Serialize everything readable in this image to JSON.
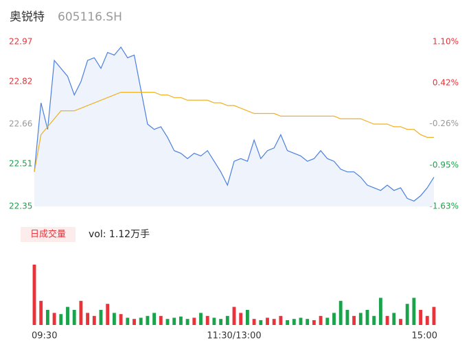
{
  "chart_data": {
    "type": "intraday",
    "title": "奥锐特",
    "subtitle": "605116.SH",
    "volume_label": "日成交量",
    "volume_text": "vol: 1.12万手",
    "price_color": "#4a7fe0",
    "avg_color": "#f0b020",
    "area_color": "#eef3fc",
    "up_color": "#e8333a",
    "down_color": "#1aa34a",
    "ylim": [
      22.35,
      22.97
    ],
    "yticks": [
      22.97,
      22.82,
      22.66,
      22.51,
      22.35
    ],
    "y2lim": [
      -1.63,
      1.1
    ],
    "y2ticks": [
      {
        "value": 1.1,
        "label": "1.10%"
      },
      {
        "value": 0.42,
        "label": "0.42%"
      },
      {
        "value": -0.26,
        "label": "-0.26%"
      },
      {
        "value": -0.95,
        "label": "-0.95%"
      },
      {
        "value": -1.63,
        "label": "-1.63%"
      }
    ],
    "tick_colors": [
      "#e8333a",
      "#e8333a",
      "#999999",
      "#1aa34a",
      "#1aa34a"
    ],
    "xlim": [
      0,
      60
    ],
    "xticks": [
      {
        "value": 0,
        "label": "09:30"
      },
      {
        "value": 30,
        "label": "11:30/13:00"
      },
      {
        "value": 60,
        "label": "15:00"
      }
    ],
    "vol_ylim": [
      0,
      100
    ],
    "series": [
      {
        "name": "price",
        "values": [
          22.48,
          22.74,
          22.64,
          22.9,
          22.87,
          22.84,
          22.77,
          22.82,
          22.9,
          22.91,
          22.87,
          22.93,
          22.92,
          22.95,
          22.91,
          22.92,
          22.79,
          22.66,
          22.64,
          22.65,
          22.61,
          22.56,
          22.55,
          22.53,
          22.55,
          22.54,
          22.56,
          22.52,
          22.48,
          22.43,
          22.52,
          22.53,
          22.52,
          22.6,
          22.53,
          22.56,
          22.57,
          22.62,
          22.56,
          22.55,
          22.54,
          22.52,
          22.53,
          22.56,
          22.53,
          22.52,
          22.49,
          22.48,
          22.48,
          22.46,
          22.43,
          22.42,
          22.41,
          22.43,
          22.41,
          22.42,
          22.38,
          22.37,
          22.39,
          22.42,
          22.46
        ]
      },
      {
        "name": "avg",
        "values": [
          22.48,
          22.62,
          22.65,
          22.68,
          22.71,
          22.71,
          22.71,
          22.72,
          22.73,
          22.74,
          22.75,
          22.76,
          22.77,
          22.78,
          22.78,
          22.78,
          22.78,
          22.78,
          22.78,
          22.77,
          22.77,
          22.76,
          22.76,
          22.75,
          22.75,
          22.75,
          22.75,
          22.74,
          22.74,
          22.73,
          22.73,
          22.72,
          22.71,
          22.7,
          22.7,
          22.7,
          22.7,
          22.69,
          22.69,
          22.69,
          22.69,
          22.69,
          22.69,
          22.69,
          22.69,
          22.69,
          22.68,
          22.68,
          22.68,
          22.68,
          22.67,
          22.66,
          22.66,
          22.66,
          22.65,
          22.65,
          22.64,
          22.64,
          22.62,
          22.61,
          22.61
        ]
      }
    ],
    "volume": [
      100,
      40,
      25,
      20,
      18,
      30,
      25,
      40,
      20,
      15,
      25,
      35,
      20,
      18,
      12,
      10,
      12,
      15,
      20,
      15,
      10,
      12,
      14,
      10,
      12,
      20,
      15,
      12,
      10,
      15,
      30,
      20,
      25,
      10,
      8,
      12,
      10,
      15,
      8,
      10,
      12,
      10,
      8,
      15,
      12,
      20,
      40,
      25,
      15,
      20,
      25,
      15,
      45,
      15,
      20,
      10,
      35,
      45,
      25,
      15,
      30
    ]
  }
}
